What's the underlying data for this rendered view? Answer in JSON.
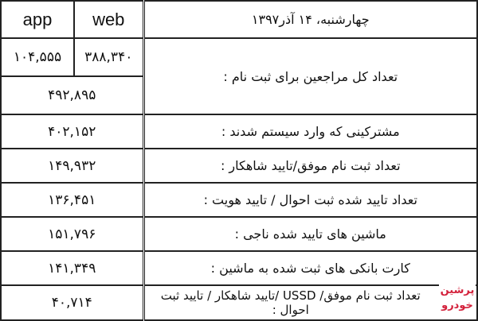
{
  "header": {
    "app_label": "app",
    "web_label": "web",
    "date": "چهارشنبه، ۱۴ آذر۱۳۹۷"
  },
  "rows": [
    {
      "label": "تعداد کل مراجعین برای ثبت نام :",
      "app": "۱۰۴,۵۵۵",
      "web": "۳۸۸,۳۴۰",
      "total": "۴۹۲,۸۹۵"
    },
    {
      "label": "مشترکینی که وارد سیستم شدند :",
      "value": "۴۰۲,۱۵۲"
    },
    {
      "label": "تعداد ثبت نام موفق/تایید شاهکار :",
      "value": "۱۴۹,۹۳۲"
    },
    {
      "label": "تعداد تایید شده ثبت احوال / تایید هویت :",
      "value": "۱۳۶,۴۵۱"
    },
    {
      "label": "ماشین های تایید شده ناجی :",
      "value": "۱۵۱,۷۹۶"
    },
    {
      "label": "کارت بانکی های ثبت شده به ماشین :",
      "value": "۱۴۱,۳۴۹"
    },
    {
      "label": "تعداد ثبت نام موفق/ USSD /تایید شاهکار / تایید ثبت احوال :",
      "value": "۴۰,۷۱۴"
    }
  ],
  "watermark": {
    "text": "پرشین خودرو",
    "color": "#d3203a"
  }
}
